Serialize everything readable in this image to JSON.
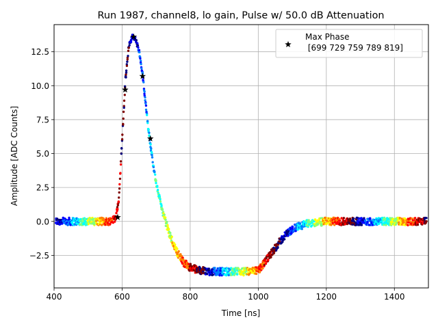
{
  "chart_data": {
    "type": "scatter",
    "title": "Run 1987, channel8, lo gain, Pulse w/ 50.0 dB Attenuation",
    "xlabel": "Time [ns]",
    "ylabel": "Amplitude [ADC Counts]",
    "xlim": [
      400,
      1500
    ],
    "ylim": [
      -4.9,
      14.5
    ],
    "xticks": [
      400,
      600,
      800,
      1000,
      1200,
      1400
    ],
    "yticks": [
      -2.5,
      0.0,
      2.5,
      5.0,
      7.5,
      10.0,
      12.5
    ],
    "xtick_labels": [
      "400",
      "600",
      "800",
      "1000",
      "1200",
      "1400"
    ],
    "ytick_labels": [
      "−2.5",
      "0.0",
      "2.5",
      "5.0",
      "7.5",
      "10.0",
      "12.5"
    ],
    "grid": true,
    "colormap": [
      "#00007f",
      "#0000ff",
      "#007fff",
      "#00ffff",
      "#7fff7f",
      "#ffff00",
      "#ff7f00",
      "#ff0000",
      "#7f0000"
    ],
    "pulse_shape": {
      "x": [
        400,
        560,
        580,
        590,
        600,
        610,
        620,
        630,
        640,
        650,
        660,
        670,
        680,
        690,
        700,
        720,
        740,
        760,
        780,
        800,
        820,
        840,
        860,
        880,
        900,
        920,
        940,
        960,
        980,
        1000,
        1020,
        1040,
        1060,
        1080,
        1100,
        1120,
        1140,
        1160,
        1180,
        1200,
        1500
      ],
      "y": [
        0,
        0,
        0.2,
        1.5,
        6.0,
        10.5,
        13.0,
        13.6,
        13.4,
        12.5,
        10.8,
        8.5,
        6.2,
        4.4,
        2.8,
        0.6,
        -1.0,
        -2.2,
        -3.0,
        -3.4,
        -3.55,
        -3.65,
        -3.7,
        -3.7,
        -3.7,
        -3.7,
        -3.7,
        -3.7,
        -3.7,
        -3.6,
        -3.0,
        -2.3,
        -1.6,
        -1.0,
        -0.6,
        -0.35,
        -0.2,
        -0.1,
        -0.05,
        0,
        0
      ]
    },
    "series": [
      {
        "name": "Max Phase",
        "legend_label": "Max Phase\n [699 729 759 789 819]",
        "marker": "star",
        "x": [
          587,
          609,
          634,
          660,
          683
        ],
        "y": [
          0.3,
          9.7,
          13.6,
          10.7,
          6.1
        ]
      }
    ],
    "legend": {
      "location": "upper right",
      "line1": "Max Phase",
      "line2": " [699 729 759 789 819]"
    }
  }
}
